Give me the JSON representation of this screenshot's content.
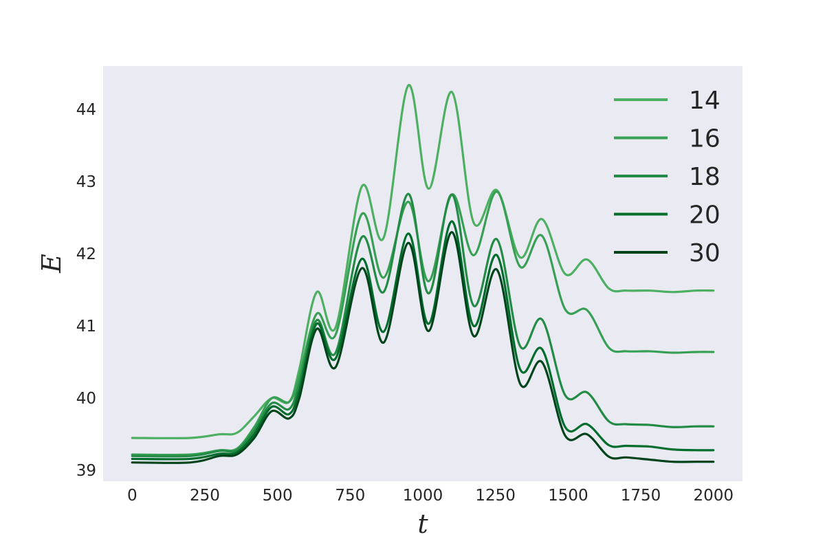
{
  "chart_data": {
    "type": "line",
    "title": "",
    "xlabel": "t",
    "ylabel": "E",
    "xlim": [
      -100,
      2100
    ],
    "ylim": [
      38.85,
      44.6
    ],
    "xticks": [
      0,
      250,
      500,
      750,
      1000,
      1250,
      1500,
      1750,
      2000
    ],
    "yticks": [
      39,
      40,
      41,
      42,
      43,
      44
    ],
    "grid": false,
    "background": "#eaeaf2",
    "legend": {
      "position": "top-right"
    },
    "series": [
      {
        "name": "14",
        "color": "#4daf62",
        "x": [
          0,
          200,
          300,
          360,
          420,
          480,
          540,
          575,
          635,
          700,
          790,
          865,
          950,
          1020,
          1100,
          1175,
          1255,
          1335,
          1410,
          1490,
          1565,
          1640,
          1700,
          1780,
          1860,
          1940,
          2000
        ],
        "y": [
          39.45,
          39.45,
          39.5,
          39.52,
          39.75,
          40.0,
          39.95,
          40.4,
          41.47,
          40.98,
          42.93,
          42.22,
          44.33,
          42.9,
          44.24,
          42.43,
          42.88,
          41.95,
          42.48,
          41.72,
          41.92,
          41.52,
          41.49,
          41.49,
          41.47,
          41.49,
          41.49
        ]
      },
      {
        "name": "16",
        "color": "#37a055",
        "x": [
          0,
          200,
          300,
          360,
          420,
          480,
          540,
          575,
          635,
          700,
          790,
          865,
          950,
          1020,
          1100,
          1175,
          1255,
          1335,
          1410,
          1490,
          1565,
          1640,
          1700,
          1780,
          1860,
          1940,
          2000
        ],
        "y": [
          39.22,
          39.22,
          39.28,
          39.3,
          39.6,
          40.0,
          39.95,
          40.3,
          41.17,
          40.88,
          42.55,
          41.67,
          42.72,
          41.62,
          42.82,
          41.98,
          42.86,
          41.82,
          42.25,
          41.23,
          41.22,
          40.7,
          40.65,
          40.65,
          40.63,
          40.64,
          40.64
        ]
      },
      {
        "name": "18",
        "color": "#238b45",
        "x": [
          0,
          200,
          300,
          360,
          420,
          480,
          540,
          575,
          635,
          700,
          790,
          865,
          950,
          1020,
          1100,
          1175,
          1255,
          1335,
          1410,
          1490,
          1565,
          1640,
          1700,
          1780,
          1860,
          1940,
          2000
        ],
        "y": [
          39.2,
          39.2,
          39.27,
          39.28,
          39.55,
          39.93,
          39.85,
          40.2,
          41.08,
          40.63,
          42.23,
          41.47,
          42.83,
          41.45,
          42.82,
          41.28,
          42.2,
          40.72,
          41.09,
          40.04,
          40.08,
          39.68,
          39.64,
          39.63,
          39.6,
          39.61,
          39.61
        ]
      },
      {
        "name": "20",
        "color": "#006d2c",
        "x": [
          0,
          200,
          300,
          360,
          420,
          480,
          540,
          575,
          635,
          700,
          790,
          865,
          950,
          1020,
          1100,
          1175,
          1255,
          1335,
          1410,
          1490,
          1565,
          1640,
          1700,
          1780,
          1860,
          1940,
          2000
        ],
        "y": [
          39.16,
          39.16,
          39.23,
          39.25,
          39.5,
          39.88,
          39.78,
          40.1,
          41.03,
          40.55,
          41.93,
          40.92,
          42.28,
          41.03,
          42.45,
          41.0,
          41.98,
          40.4,
          40.68,
          39.6,
          39.64,
          39.35,
          39.34,
          39.33,
          39.29,
          39.28,
          39.28
        ]
      },
      {
        "name": "30",
        "color": "#00441b",
        "x": [
          0,
          200,
          300,
          360,
          420,
          480,
          540,
          575,
          635,
          700,
          790,
          865,
          950,
          1020,
          1100,
          1175,
          1255,
          1335,
          1410,
          1490,
          1565,
          1640,
          1700,
          1780,
          1860,
          1940,
          2000
        ],
        "y": [
          39.11,
          39.11,
          39.2,
          39.22,
          39.45,
          39.82,
          39.72,
          40.0,
          40.96,
          40.43,
          41.8,
          40.77,
          42.15,
          40.93,
          42.3,
          40.86,
          41.78,
          40.2,
          40.5,
          39.48,
          39.5,
          39.19,
          39.18,
          39.15,
          39.12,
          39.12,
          39.12
        ]
      }
    ]
  }
}
